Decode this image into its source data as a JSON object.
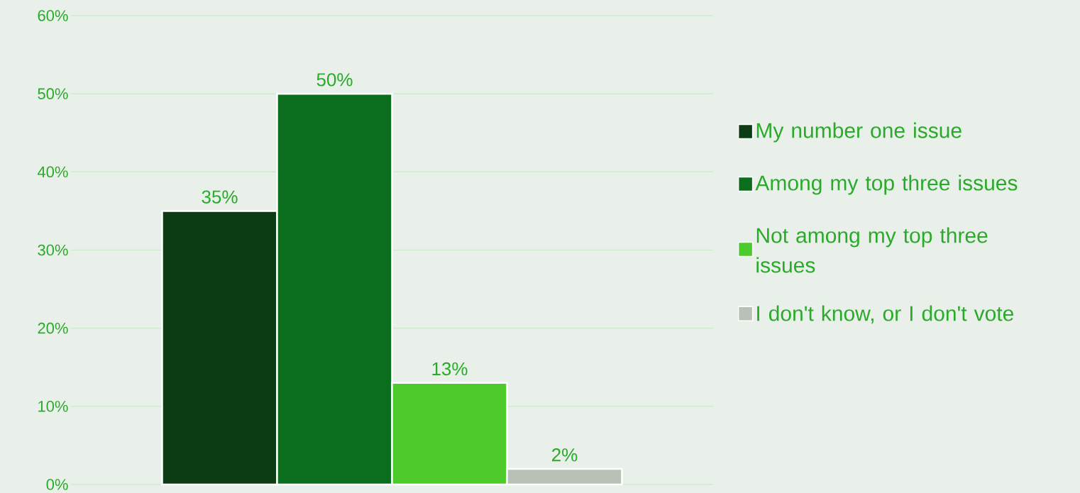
{
  "chart_data": {
    "type": "bar",
    "categories": [
      null
    ],
    "series": [
      {
        "name": "My number one issue",
        "color": "#0d3b14",
        "values": [
          35
        ],
        "value_labels": [
          "35%"
        ]
      },
      {
        "name": "Among my top three issues",
        "color": "#0a6e1e",
        "values": [
          50
        ],
        "value_labels": [
          "50%"
        ]
      },
      {
        "name": "Not among my top three issues",
        "color": "#4ecb2c",
        "values": [
          13
        ],
        "value_labels": [
          "13%"
        ]
      },
      {
        "name": "I don't know, or I don't vote",
        "color": "#b9c1b7",
        "values": [
          2
        ],
        "value_labels": [
          "2%"
        ]
      }
    ],
    "ylim": [
      0,
      60
    ],
    "yticks": [
      {
        "value": 0,
        "label": "0%"
      },
      {
        "value": 10,
        "label": "10%"
      },
      {
        "value": 20,
        "label": "20%"
      },
      {
        "value": 30,
        "label": "30%"
      },
      {
        "value": 40,
        "label": "40%"
      },
      {
        "value": 50,
        "label": "50%"
      },
      {
        "value": 60,
        "label": "60%"
      }
    ],
    "grid": "y",
    "legend": "right",
    "tick_labels": "y"
  }
}
